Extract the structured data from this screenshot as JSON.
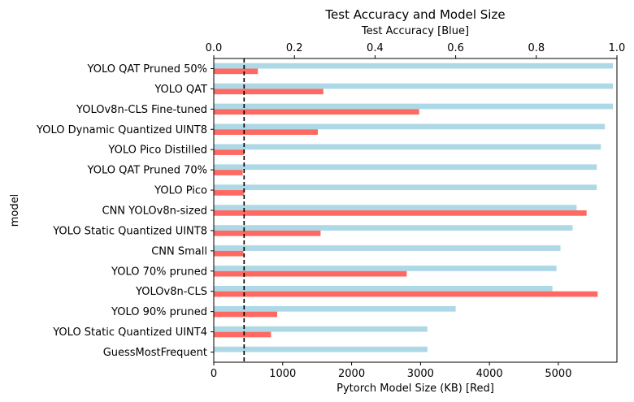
{
  "chart_data": {
    "type": "bar",
    "orientation": "horizontal",
    "title": "Test Accuracy and Model Size",
    "ylabel": "model",
    "xlabel_bottom": "Pytorch Model Size (KB) [Red]",
    "xlabel_top": "Test Accuracy [Blue]",
    "xlim_bottom": [
      0,
      5850
    ],
    "xlim_top": [
      0,
      1.0
    ],
    "xticks_bottom": [
      "0",
      "1000",
      "2000",
      "3000",
      "4000",
      "5000"
    ],
    "xticks_top": [
      "0.0",
      "0.2",
      "0.4",
      "0.6",
      "0.8",
      "1.0"
    ],
    "grid": false,
    "categories": [
      "YOLO QAT Pruned 50%",
      "YOLO QAT",
      "YOLOv8n-CLS Fine-tuned",
      "YOLO Dynamic Quantized UINT8",
      "YOLO Pico Distilled",
      "YOLO QAT Pruned 70%",
      "YOLO Pico",
      "CNN YOLOv8n-sized",
      "YOLO Static Quantized UINT8",
      "CNN Small",
      "YOLO 70% pruned",
      "YOLOv8n-CLS",
      "YOLO 90% pruned",
      "YOLO Static Quantized UINT4",
      "GuessMostFrequent"
    ],
    "series": [
      {
        "axis": "top",
        "color": "#add8e6",
        "values": [
          0.99,
          0.99,
          0.99,
          0.97,
          0.96,
          0.95,
          0.95,
          0.9,
          0.89,
          0.86,
          0.85,
          0.84,
          0.6,
          0.53,
          0.53
        ]
      },
      {
        "axis": "bottom",
        "color": "#ff6961",
        "values": [
          640,
          1590,
          2980,
          1510,
          440,
          420,
          440,
          5410,
          1550,
          430,
          2800,
          5570,
          920,
          830,
          0
        ]
      }
    ],
    "reference_line": {
      "axis": "bottom",
      "value": 440,
      "style": "dashed",
      "color": "#000000"
    }
  }
}
